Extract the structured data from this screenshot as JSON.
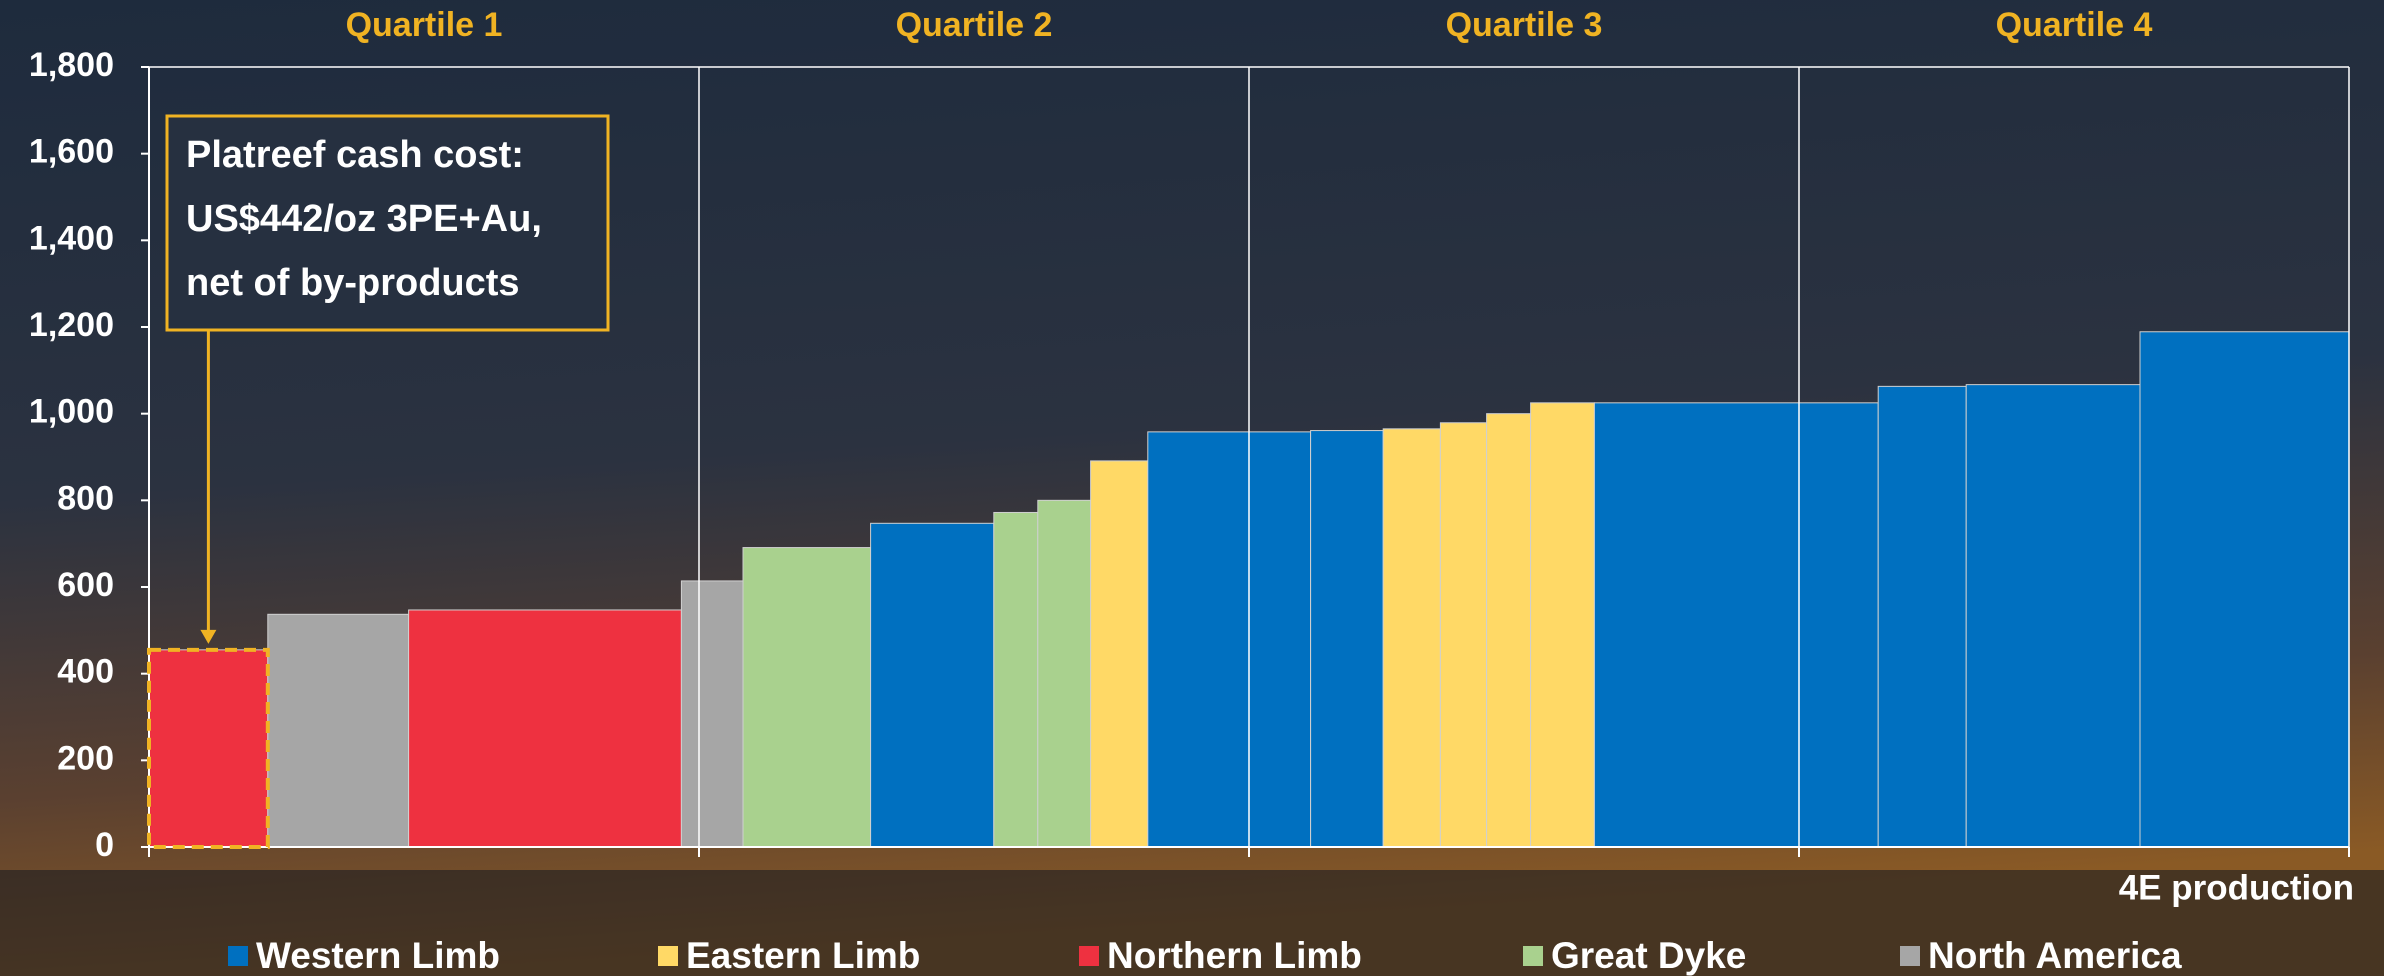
{
  "chart_data": {
    "type": "cost-curve",
    "xlabel": "4E production",
    "xlim": [
      0,
      100
    ],
    "quartiles": {
      "labels": [
        "Quartile 1",
        "Quartile 2",
        "Quartile 3",
        "Quartile 4"
      ],
      "bounds": [
        0,
        25,
        50,
        75,
        100
      ]
    },
    "ylim": [
      0,
      1800
    ],
    "yticks": [
      0,
      200,
      400,
      600,
      800,
      {
        "value": 1000,
        "label": "1,000"
      },
      {
        "value": 1200,
        "label": "1,200"
      },
      {
        "value": 1400,
        "label": "1,400"
      },
      {
        "value": 1600,
        "label": "1,600"
      },
      {
        "value": 1800,
        "label": "1,800"
      }
    ],
    "series": [
      {
        "name": "Western Limb",
        "color": "#0070c0"
      },
      {
        "name": "Eastern Limb",
        "color": "#ffd966"
      },
      {
        "name": "Northern Limb",
        "color": "#ee3140"
      },
      {
        "name": "Great Dyke",
        "color": "#a9d18e"
      },
      {
        "name": "North America",
        "color": "#a6a6a6"
      }
    ],
    "edges": [
      0,
      5.4,
      11.8,
      24.2,
      27.0,
      32.8,
      38.4,
      40.4,
      42.8,
      45.4,
      52.8,
      56.1,
      58.7,
      60.8,
      62.8,
      65.7,
      78.6,
      82.6,
      90.5,
      100
    ],
    "values": [
      455,
      537,
      547,
      614,
      691,
      747,
      772,
      800,
      891,
      958,
      961,
      965,
      979,
      1000,
      1025,
      1025,
      1063,
      1067,
      1189
    ],
    "groups": [
      2,
      4,
      2,
      4,
      3,
      0,
      3,
      3,
      1,
      0,
      0,
      1,
      1,
      1,
      1,
      0,
      0,
      0,
      0
    ],
    "annotation": [
      "Platreef cash cost:",
      "US$442/oz 3PE+Au,",
      "net of by-products"
    ],
    "annotation_color": "#f0b323"
  }
}
